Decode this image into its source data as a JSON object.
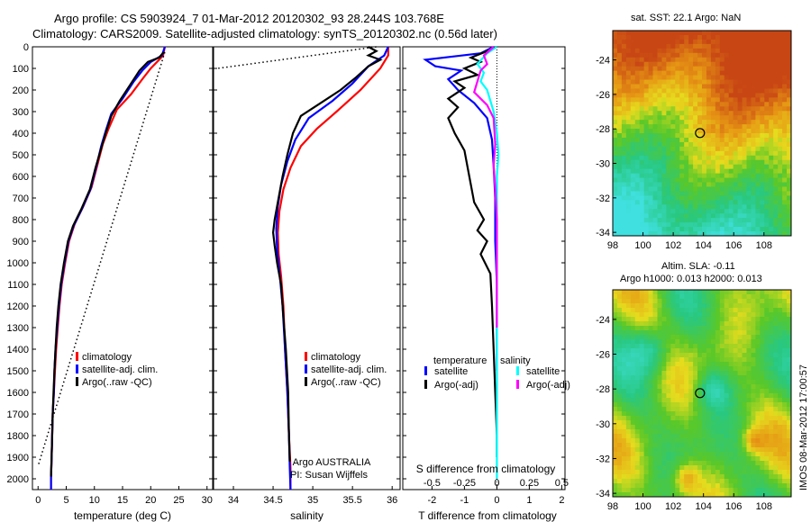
{
  "title_line1": "Argo profile: CS 5903924_7 01-Mar-2012 20120302_93 28.244S 103.768E",
  "title_line2": "Climatology: CARS2009. Satellite-adjusted climatology: synTS_20120302.nc (0.56d later)",
  "sst_map_title": "sat. SST: 22.1  Argo: NaN",
  "sla_map_title1": "Altim. SLA: -0.11",
  "sla_map_title2": "Argo h1000: 0.013  h2000: 0.013",
  "credit": "IMOS 08-Mar-2012 17:00:57",
  "colors": {
    "climatology": "#ff0000",
    "satellite": "#0000ff",
    "argo": "#000000",
    "satellite_salinity": "#00ffff",
    "argo_adj_salinity": "#ff00ff"
  },
  "chart_data": [
    {
      "type": "line",
      "panel": "temperature",
      "xlabel": "temperature (deg C)",
      "xlim": [
        -1,
        31
      ],
      "ylim": [
        2050,
        0
      ],
      "xticks": [
        0,
        5,
        10,
        15,
        20,
        25,
        30
      ],
      "yticks": [
        0,
        100,
        200,
        300,
        400,
        500,
        600,
        700,
        800,
        900,
        1000,
        1100,
        1200,
        1300,
        1400,
        1500,
        1600,
        1700,
        1800,
        1900,
        2000
      ],
      "legend": [
        "climatology",
        "satellite-adj. clim.",
        "Argo(..raw -QC)"
      ],
      "series": [
        {
          "name": "climatology",
          "color": "#ff0000",
          "points": [
            [
              22.5,
              0
            ],
            [
              22.2,
              40
            ],
            [
              21.5,
              60
            ],
            [
              20,
              100
            ],
            [
              18.5,
              150
            ],
            [
              16.5,
              220
            ],
            [
              14,
              290
            ],
            [
              12.5,
              380
            ],
            [
              11.5,
              450
            ],
            [
              10.5,
              550
            ],
            [
              9.5,
              650
            ],
            [
              8,
              740
            ],
            [
              6.5,
              820
            ],
            [
              5.5,
              900
            ],
            [
              4.8,
              1000
            ],
            [
              4.2,
              1100
            ],
            [
              3.8,
              1200
            ],
            [
              3.5,
              1300
            ],
            [
              3.2,
              1400
            ],
            [
              3,
              1500
            ],
            [
              2.8,
              1600
            ],
            [
              2.6,
              1700
            ],
            [
              2.5,
              1800
            ],
            [
              2.4,
              1900
            ],
            [
              2.3,
              2000
            ],
            [
              2.3,
              2050
            ]
          ]
        },
        {
          "name": "satellite-adj. clim.",
          "color": "#0000ff",
          "points": [
            [
              22.5,
              0
            ],
            [
              22,
              40
            ],
            [
              20,
              70
            ],
            [
              18.5,
              110
            ],
            [
              17,
              160
            ],
            [
              15,
              240
            ],
            [
              13,
              310
            ],
            [
              12,
              390
            ],
            [
              11.2,
              460
            ],
            [
              10.3,
              560
            ],
            [
              9.3,
              660
            ],
            [
              7.8,
              750
            ],
            [
              6.3,
              830
            ],
            [
              5.4,
              900
            ],
            [
              4.7,
              1000
            ],
            [
              4.1,
              1100
            ],
            [
              3.7,
              1200
            ],
            [
              3.4,
              1300
            ],
            [
              3.1,
              1400
            ],
            [
              2.9,
              1500
            ],
            [
              2.8,
              1600
            ],
            [
              2.6,
              1700
            ],
            [
              2.5,
              1800
            ],
            [
              2.4,
              1900
            ],
            [
              2.3,
              2000
            ],
            [
              2.3,
              2050
            ]
          ]
        },
        {
          "name": "Argo(..raw -QC)",
          "color": "#000000",
          "points": [
            [
              22.3,
              25
            ],
            [
              21.5,
              50
            ],
            [
              19.5,
              70
            ],
            [
              18,
              110
            ],
            [
              16.5,
              170
            ],
            [
              14.5,
              250
            ],
            [
              13,
              320
            ],
            [
              12,
              400
            ],
            [
              11.2,
              470
            ],
            [
              10.2,
              560
            ],
            [
              9.2,
              660
            ],
            [
              7.7,
              750
            ],
            [
              6.2,
              830
            ],
            [
              5.3,
              900
            ],
            [
              4.6,
              1000
            ],
            [
              4,
              1100
            ],
            [
              3.6,
              1200
            ],
            [
              3.3,
              1300
            ],
            [
              3.1,
              1400
            ],
            [
              2.9,
              1500
            ],
            [
              2.75,
              1600
            ],
            [
              2.6,
              1700
            ],
            [
              2.5,
              1800
            ],
            [
              2.4,
              1900
            ],
            [
              2.3,
              1990
            ]
          ]
        },
        {
          "name": "",
          "color": "#000000",
          "dotted": true,
          "points": [
            [
              22.5,
              25
            ],
            [
              0,
              1940
            ]
          ]
        }
      ]
    },
    {
      "type": "line",
      "panel": "salinity",
      "xlabel": "salinity",
      "xlim": [
        33.75,
        36.1
      ],
      "ylim": [
        2050,
        0
      ],
      "xticks": [
        34,
        34.5,
        35,
        35.5,
        36
      ],
      "legend": [
        "climatology",
        "satellite-adj. clim.",
        "Argo(..raw -QC)"
      ],
      "annotation": [
        "Argo AUSTRALIA",
        "PI: Susan Wijffels"
      ],
      "series": [
        {
          "name": "climatology",
          "color": "#ff0000",
          "points": [
            [
              35.95,
              0
            ],
            [
              35.95,
              40
            ],
            [
              35.85,
              100
            ],
            [
              35.6,
              200
            ],
            [
              35.3,
              300
            ],
            [
              35.05,
              380
            ],
            [
              34.85,
              460
            ],
            [
              34.72,
              560
            ],
            [
              34.63,
              660
            ],
            [
              34.58,
              760
            ],
            [
              34.56,
              860
            ],
            [
              34.57,
              960
            ],
            [
              34.6,
              1060
            ],
            [
              34.63,
              1200
            ],
            [
              34.65,
              1400
            ],
            [
              34.68,
              1600
            ],
            [
              34.7,
              1800
            ],
            [
              34.72,
              1950
            ],
            [
              34.72,
              2050
            ]
          ]
        },
        {
          "name": "satellite-adj. clim.",
          "color": "#0000ff",
          "points": [
            [
              35.95,
              0
            ],
            [
              35.9,
              40
            ],
            [
              35.7,
              90
            ],
            [
              35.5,
              170
            ],
            [
              35.25,
              250
            ],
            [
              34.95,
              330
            ],
            [
              34.78,
              430
            ],
            [
              34.68,
              530
            ],
            [
              34.6,
              640
            ],
            [
              34.56,
              740
            ],
            [
              34.54,
              840
            ],
            [
              34.55,
              940
            ],
            [
              34.58,
              1040
            ],
            [
              34.62,
              1200
            ],
            [
              34.65,
              1400
            ],
            [
              34.68,
              1600
            ],
            [
              34.7,
              1800
            ],
            [
              34.71,
              1950
            ],
            [
              34.72,
              2050
            ]
          ]
        },
        {
          "name": "Argo(..raw -QC)",
          "color": "#000000",
          "points": [
            [
              35.7,
              0
            ],
            [
              35.8,
              20
            ],
            [
              35.7,
              40
            ],
            [
              35.85,
              60
            ],
            [
              35.7,
              90
            ],
            [
              35.55,
              140
            ],
            [
              35.35,
              200
            ],
            [
              35.1,
              260
            ],
            [
              34.85,
              320
            ],
            [
              34.75,
              400
            ],
            [
              34.68,
              500
            ],
            [
              34.62,
              600
            ],
            [
              34.57,
              700
            ],
            [
              34.52,
              800
            ],
            [
              34.5,
              860
            ],
            [
              34.52,
              920
            ],
            [
              34.55,
              1000
            ],
            [
              34.6,
              1100
            ],
            [
              34.63,
              1250
            ],
            [
              34.66,
              1400
            ],
            [
              34.69,
              1600
            ],
            [
              34.7,
              1800
            ],
            [
              34.71,
              1920
            ]
          ]
        },
        {
          "name": "",
          "color": "#000000",
          "dotted": true,
          "points": [
            [
              35.8,
              0
            ],
            [
              33.8,
              100
            ]
          ]
        }
      ]
    },
    {
      "type": "line",
      "panel": "difference",
      "xlabel": "T difference from climatology",
      "top_xlabel": "S difference from climatology",
      "xlim": [
        -2.9,
        2.1
      ],
      "ylim": [
        2050,
        0
      ],
      "xticks": [
        -2,
        -1,
        0,
        1,
        2
      ],
      "top_xticks": [
        -0.5,
        -0.25,
        0,
        0.25,
        0.5
      ],
      "legend_titles": [
        "temperature",
        "salinity"
      ],
      "legend": [
        "satellite",
        "Argo(-adj)",
        "satellite",
        "Argo(-adj)"
      ],
      "series": [
        {
          "name": "satellite",
          "color": "#0000ff",
          "points": [
            [
              -0.1,
              0
            ],
            [
              -0.5,
              30
            ],
            [
              -2.2,
              60
            ],
            [
              -1.9,
              90
            ],
            [
              -1.1,
              110
            ],
            [
              -1.5,
              150
            ],
            [
              -1.2,
              200
            ],
            [
              -0.7,
              260
            ],
            [
              -0.3,
              330
            ],
            [
              -0.15,
              430
            ],
            [
              -0.1,
              550
            ],
            [
              -0.05,
              700
            ],
            [
              -0.05,
              900
            ],
            [
              0,
              1100
            ],
            [
              0,
              1300
            ],
            [
              0,
              1500
            ]
          ]
        },
        {
          "name": "Argo(-adj)",
          "color": "#000000",
          "points": [
            [
              0,
              0
            ],
            [
              -0.3,
              20
            ],
            [
              -0.8,
              50
            ],
            [
              -0.5,
              70
            ],
            [
              -1.0,
              100
            ],
            [
              -0.6,
              130
            ],
            [
              -1.3,
              160
            ],
            [
              -1.0,
              190
            ],
            [
              -1.5,
              240
            ],
            [
              -1.2,
              280
            ],
            [
              -1.5,
              330
            ],
            [
              -1.3,
              400
            ],
            [
              -1.0,
              480
            ],
            [
              -0.9,
              560
            ],
            [
              -0.8,
              640
            ],
            [
              -0.7,
              720
            ],
            [
              -0.4,
              800
            ],
            [
              -0.6,
              850
            ],
            [
              -0.3,
              900
            ],
            [
              -0.5,
              960
            ],
            [
              -0.2,
              1050
            ],
            [
              -0.15,
              1200
            ],
            [
              -0.1,
              1400
            ],
            [
              -0.05,
              1600
            ],
            [
              0,
              1800
            ],
            [
              0,
              1900
            ]
          ]
        },
        {
          "name": "satellite",
          "color": "#00ffff",
          "points": [
            [
              0,
              0
            ],
            [
              -0.3,
              30
            ],
            [
              -0.6,
              80
            ],
            [
              -0.4,
              120
            ],
            [
              -0.5,
              160
            ],
            [
              -0.3,
              200
            ],
            [
              -0.2,
              250
            ],
            [
              -0.1,
              300
            ],
            [
              0,
              400
            ],
            [
              0.05,
              500
            ],
            [
              0,
              600
            ],
            [
              0,
              800
            ],
            [
              0,
              1000
            ],
            [
              0,
              1200
            ],
            [
              0,
              1400
            ],
            [
              0,
              1600
            ],
            [
              0,
              1800
            ],
            [
              0,
              2000
            ]
          ]
        },
        {
          "name": "Argo(-adj)",
          "color": "#ff00ff",
          "points": [
            [
              -0.1,
              0
            ],
            [
              -0.4,
              40
            ],
            [
              -0.3,
              80
            ],
            [
              -0.5,
              110
            ],
            [
              -0.6,
              160
            ],
            [
              -0.7,
              210
            ],
            [
              -0.3,
              270
            ],
            [
              -0.1,
              330
            ],
            [
              -0.05,
              450
            ],
            [
              -0.1,
              550
            ],
            [
              -0.05,
              650
            ],
            [
              0,
              800
            ],
            [
              0,
              1000
            ],
            [
              0,
              1200
            ],
            [
              0,
              1300
            ]
          ]
        }
      ]
    }
  ],
  "maps": [
    {
      "name": "sst-map",
      "xticks": [
        98,
        100,
        102,
        104,
        106,
        108
      ],
      "yticks": [
        -24,
        -26,
        -28,
        -30,
        -32,
        -34
      ],
      "xlim": [
        98,
        109.8
      ],
      "ylim": [
        -34.2,
        -22.3
      ],
      "marker": [
        103.77,
        -28.24
      ]
    },
    {
      "name": "sla-map",
      "xticks": [
        98,
        100,
        102,
        104,
        106,
        108
      ],
      "yticks": [
        -24,
        -26,
        -28,
        -30,
        -32,
        -34
      ],
      "xlim": [
        98,
        109.8
      ],
      "ylim": [
        -34.2,
        -22.3
      ],
      "marker": [
        103.77,
        -28.24
      ]
    }
  ]
}
